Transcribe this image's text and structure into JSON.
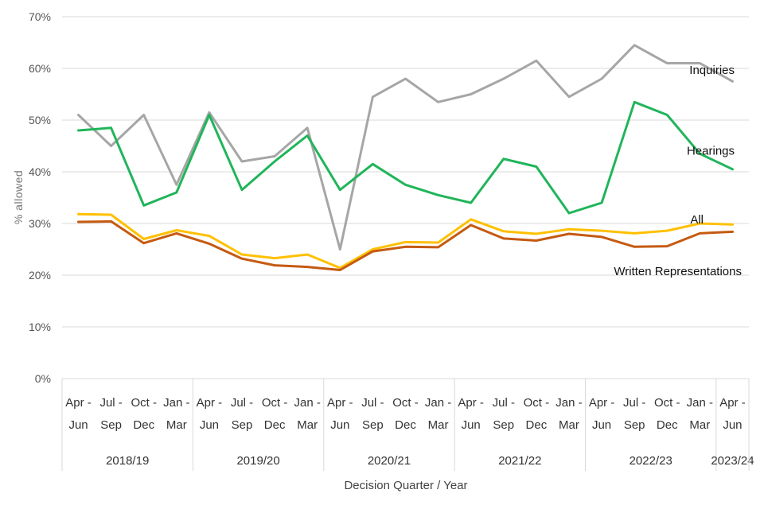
{
  "chart_data": {
    "type": "line",
    "title": "",
    "xlabel": "Decision Quarter / Year",
    "ylabel": "% allowed",
    "ylim": [
      0,
      70
    ],
    "yticks": [
      "0%",
      "10%",
      "20%",
      "30%",
      "40%",
      "50%",
      "60%",
      "70%"
    ],
    "categories": [
      [
        "Apr -",
        "Jun"
      ],
      [
        "Jul -",
        "Sep"
      ],
      [
        "Oct -",
        "Dec"
      ],
      [
        "Jan -",
        "Mar"
      ],
      [
        "Apr -",
        "Jun"
      ],
      [
        "Jul -",
        "Sep"
      ],
      [
        "Oct -",
        "Dec"
      ],
      [
        "Jan -",
        "Mar"
      ],
      [
        "Apr -",
        "Jun"
      ],
      [
        "Jul -",
        "Sep"
      ],
      [
        "Oct -",
        "Dec"
      ],
      [
        "Jan -",
        "Mar"
      ],
      [
        "Apr -",
        "Jun"
      ],
      [
        "Jul -",
        "Sep"
      ],
      [
        "Oct -",
        "Dec"
      ],
      [
        "Jan -",
        "Mar"
      ],
      [
        "Apr -",
        "Jun"
      ],
      [
        "Jul -",
        "Sep"
      ],
      [
        "Oct -",
        "Dec"
      ],
      [
        "Jan -",
        "Mar"
      ],
      [
        "Apr -",
        "Jun"
      ]
    ],
    "year_groups": [
      {
        "label": "2018/19",
        "count": 4
      },
      {
        "label": "2019/20",
        "count": 4
      },
      {
        "label": "2020/21",
        "count": 4
      },
      {
        "label": "2021/22",
        "count": 4
      },
      {
        "label": "2022/23",
        "count": 4
      },
      {
        "label": "2023/24",
        "count": 1
      }
    ],
    "series": [
      {
        "name": "Inquiries",
        "color": "#a6a6a6",
        "values": [
          51,
          45,
          51,
          37.5,
          51.5,
          42,
          43,
          48.5,
          25,
          54.5,
          58,
          53.5,
          55,
          58,
          61.5,
          54.5,
          58,
          64.5,
          61,
          61,
          57.5
        ]
      },
      {
        "name": "Hearings",
        "color": "#20b55a",
        "values": [
          48,
          48.5,
          33.5,
          36,
          51,
          36.5,
          42,
          47,
          36.5,
          41.5,
          37.5,
          35.5,
          34,
          42.5,
          41,
          32,
          34,
          53.5,
          51,
          43.5,
          40.5
        ]
      },
      {
        "name": "All",
        "color": "#ffc000",
        "values": [
          31.8,
          31.7,
          27,
          28.7,
          27.6,
          24,
          23.3,
          24,
          21.4,
          25,
          26.4,
          26.3,
          30.8,
          28.5,
          28,
          28.9,
          28.6,
          28.1,
          28.6,
          30,
          29.8
        ]
      },
      {
        "name": "Written Representations",
        "color": "#c55a11",
        "values": [
          30.3,
          30.4,
          26.2,
          28.1,
          26.1,
          23.2,
          21.9,
          21.6,
          21.0,
          24.6,
          25.5,
          25.4,
          29.7,
          27.1,
          26.7,
          28.0,
          27.4,
          25.5,
          25.6,
          28.1,
          28.4
        ]
      }
    ]
  }
}
